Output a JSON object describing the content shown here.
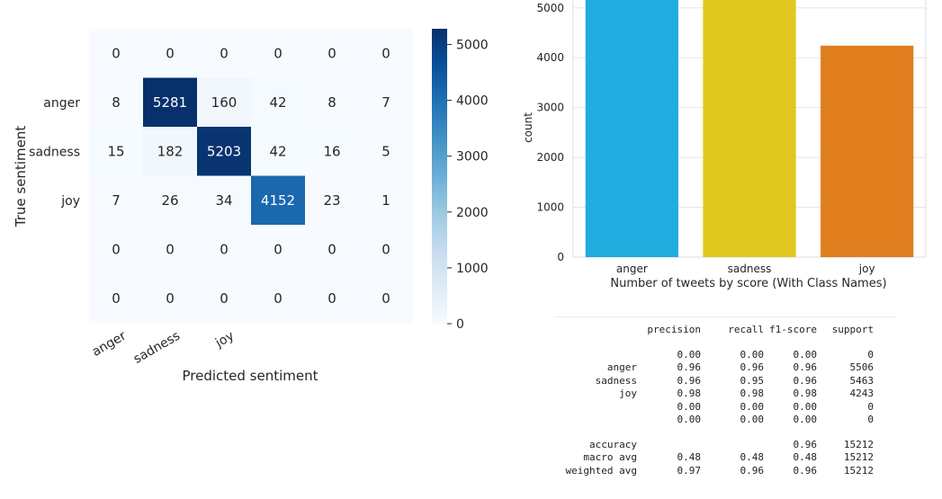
{
  "chart_data": [
    {
      "type": "heatmap",
      "xlabel": "Predicted sentiment",
      "ylabel": "True sentiment",
      "x_tick_labels": [
        "anger",
        "sadness",
        "joy"
      ],
      "y_tick_labels": [
        "",
        "anger",
        "sadness",
        "joy",
        "",
        ""
      ],
      "matrix": [
        [
          0,
          0,
          0,
          0,
          0,
          0
        ],
        [
          8,
          5281,
          160,
          42,
          8,
          7
        ],
        [
          15,
          182,
          5203,
          42,
          16,
          5
        ],
        [
          7,
          26,
          34,
          4152,
          23,
          1
        ],
        [
          0,
          0,
          0,
          0,
          0,
          0
        ],
        [
          0,
          0,
          0,
          0,
          0,
          0
        ]
      ],
      "colorscale": "Blues",
      "colorbar_ticks": [
        "0",
        "1000",
        "2000",
        "3000",
        "4000",
        "5000"
      ],
      "colorbar_range": [
        0,
        5281
      ]
    },
    {
      "type": "bar",
      "title": "",
      "xlabel": "Number of tweets by score (With Class Names)",
      "ylabel": "count",
      "categories": [
        "anger",
        "sadness",
        "joy"
      ],
      "values": [
        5506,
        5463,
        4243
      ],
      "colors": [
        "#21ade0",
        "#e0c81e",
        "#e07e1e"
      ],
      "ylim": [
        0,
        5700
      ],
      "yticks": [
        "0",
        "1000",
        "2000",
        "3000",
        "4000",
        "5000"
      ],
      "grid": true
    }
  ],
  "report": {
    "headers": [
      "precision",
      "recall",
      "f1-score",
      "support"
    ],
    "rows": [
      {
        "label": "",
        "precision": "0.00",
        "recall": "0.00",
        "f1": "0.00",
        "support": "0"
      },
      {
        "label": "anger",
        "precision": "0.96",
        "recall": "0.96",
        "f1": "0.96",
        "support": "5506"
      },
      {
        "label": "sadness",
        "precision": "0.96",
        "recall": "0.95",
        "f1": "0.96",
        "support": "5463"
      },
      {
        "label": "joy",
        "precision": "0.98",
        "recall": "0.98",
        "f1": "0.98",
        "support": "4243"
      },
      {
        "label": "",
        "precision": "0.00",
        "recall": "0.00",
        "f1": "0.00",
        "support": "0"
      },
      {
        "label": "",
        "precision": "0.00",
        "recall": "0.00",
        "f1": "0.00",
        "support": "0"
      }
    ],
    "summary": [
      {
        "label": "accuracy",
        "precision": "",
        "recall": "",
        "f1": "0.96",
        "support": "15212"
      },
      {
        "label": "macro avg",
        "precision": "0.48",
        "recall": "0.48",
        "f1": "0.48",
        "support": "15212"
      },
      {
        "label": "weighted avg",
        "precision": "0.97",
        "recall": "0.96",
        "f1": "0.96",
        "support": "15212"
      }
    ]
  }
}
